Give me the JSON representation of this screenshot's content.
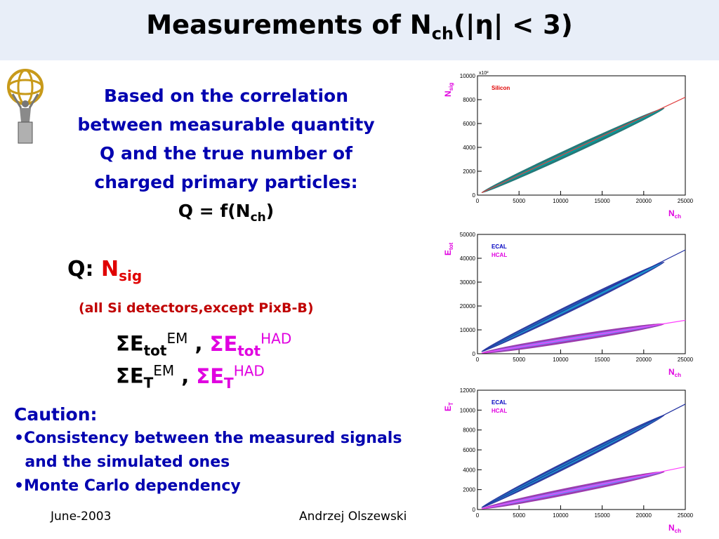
{
  "title": {
    "main": "Measurements of N",
    "sub": "ch",
    "rest": "(|η| < 3)"
  },
  "intro": {
    "lines": [
      "Based on the correlation",
      "between measurable quantity",
      "Q and the true number of",
      "charged primary particles:"
    ],
    "eq_main": "Q = f(N",
    "eq_sub": "ch",
    "eq_end": ")"
  },
  "q": {
    "label": "Q:",
    "n": "N",
    "sub": "sig"
  },
  "si_note": "(all Si detectors,except PixB-B)",
  "etot": {
    "sigma": "Σ",
    "e": "E",
    "sub": "tot",
    "sup_em": "EM",
    "sep": " , ",
    "sup_had": "HAD"
  },
  "et": {
    "sigma": "Σ",
    "e": "E",
    "sub": "T",
    "sup_em": "EM",
    "sep": " , ",
    "sup_had": "HAD"
  },
  "caution": {
    "head": "Caution:",
    "items": [
      "•Consistency between the measured signals",
      "  and the simulated ones",
      "•Monte Carlo dependency"
    ]
  },
  "footer": {
    "date": "June-2003",
    "author": "Andrzej Olszewski"
  },
  "colors": {
    "title_bg": "#e8eef8",
    "blue_text": "#0000b0",
    "red": "#e00000",
    "magenta": "#e000e0"
  },
  "chart_data": [
    {
      "type": "scatter",
      "ylabel": "N",
      "ylabel_sub": "sig",
      "xlabel": "N",
      "xlabel_sub": "ch",
      "xlim": [
        0,
        25000
      ],
      "ylim": [
        0,
        10000
      ],
      "x_ticks": [
        "0",
        "5000",
        "10000",
        "15000",
        "20000",
        "25000"
      ],
      "y_ticks": [
        "0",
        "2000",
        "4000",
        "6000",
        "8000",
        "10000"
      ],
      "y_multiplier": "x10²",
      "legend": [
        {
          "name": "Silicon",
          "color": "#e00000"
        }
      ],
      "series": [
        {
          "name": "Silicon",
          "band": [
            [
              500,
              200
            ],
            [
              22500,
              7300
            ]
          ],
          "fit_end": [
            25000,
            8200
          ]
        }
      ]
    },
    {
      "type": "scatter",
      "ylabel": "E",
      "ylabel_sub": "tot",
      "xlabel": "N",
      "xlabel_sub": "ch",
      "xlim": [
        0,
        25000
      ],
      "ylim": [
        0,
        50000
      ],
      "x_ticks": [
        "0",
        "5000",
        "10000",
        "15000",
        "20000",
        "25000"
      ],
      "y_ticks": [
        "0",
        "10000",
        "20000",
        "30000",
        "40000",
        "50000"
      ],
      "legend": [
        {
          "name": "ECAL",
          "color": "#0000c0"
        },
        {
          "name": "HCAL",
          "color": "#e000e0"
        }
      ],
      "series": [
        {
          "name": "ECAL",
          "band": [
            [
              500,
              900
            ],
            [
              22500,
              38500
            ]
          ],
          "fit_end": [
            25000,
            43500
          ]
        },
        {
          "name": "HCAL",
          "band": [
            [
              500,
              300
            ],
            [
              22500,
              12500
            ]
          ],
          "fit_end": [
            25000,
            14000
          ]
        }
      ]
    },
    {
      "type": "scatter",
      "ylabel": "E",
      "ylabel_sub": "T",
      "xlabel": "N",
      "xlabel_sub": "ch",
      "xlim": [
        0,
        25000
      ],
      "ylim": [
        0,
        12000
      ],
      "x_ticks": [
        "0",
        "5000",
        "10000",
        "15000",
        "20000",
        "25000"
      ],
      "y_ticks": [
        "0",
        "2000",
        "4000",
        "6000",
        "8000",
        "10000",
        "12000"
      ],
      "legend": [
        {
          "name": "ECAL",
          "color": "#0000c0"
        },
        {
          "name": "HCAL",
          "color": "#e000e0"
        }
      ],
      "series": [
        {
          "name": "ECAL",
          "band": [
            [
              500,
              200
            ],
            [
              22500,
              9500
            ]
          ],
          "fit_end": [
            25000,
            10600
          ]
        },
        {
          "name": "HCAL",
          "band": [
            [
              500,
              80
            ],
            [
              22500,
              3800
            ]
          ],
          "fit_end": [
            25000,
            4300
          ]
        }
      ]
    }
  ]
}
